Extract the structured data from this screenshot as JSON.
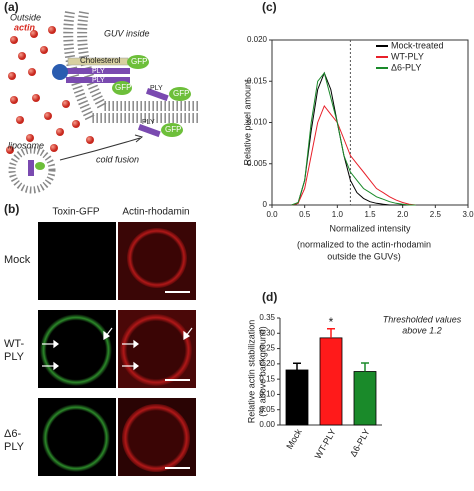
{
  "panels": {
    "a": {
      "label": "(a)",
      "outside": "Outside",
      "actin": "actin",
      "guv_inside": "GUV inside",
      "cholesterol": "Cholesterol",
      "gfp_1": "GFP",
      "ply_1": "PLY",
      "ply_2": "PLY",
      "gfp_2": "GFP",
      "ply_3": "PLY",
      "gfp_3": "GFP",
      "ply_4": "PLY",
      "gfp_4": "GFP",
      "liposome": "liposome",
      "cold_fusion": "cold fusion"
    },
    "b": {
      "label": "(b)",
      "columns": [
        "Toxin-GFP",
        "Actin-rhodamin"
      ],
      "rows": [
        "Mock",
        "WT-PLY",
        "Δ6-PLY"
      ]
    }
  },
  "chart_data": [
    {
      "type": "line",
      "label": "(c)",
      "ylabel": "Relative pixel amount",
      "xlabel": "Normalized intensity",
      "note": [
        "(normalized to the actin-rhodamin",
        "outside the GUVs)"
      ],
      "x": [
        0.3,
        0.4,
        0.5,
        0.6,
        0.7,
        0.8,
        0.9,
        1.0,
        1.1,
        1.2,
        1.3,
        1.4,
        1.5,
        1.6,
        1.7,
        1.8,
        1.9,
        2.0,
        2.1,
        2.2
      ],
      "series": [
        {
          "name": "Mock-treated",
          "color": "#000000",
          "values": [
            0,
            0.0002,
            0.003,
            0.009,
            0.014,
            0.016,
            0.014,
            0.01,
            0.006,
            0.003,
            0.0015,
            0.0008,
            0.0004,
            0.0002,
            0.0001,
            0,
            0,
            0,
            0,
            0
          ]
        },
        {
          "name": "WT-PLY",
          "color": "#e8202a",
          "values": [
            0,
            0.0002,
            0.002,
            0.006,
            0.01,
            0.012,
            0.011,
            0.01,
            0.008,
            0.006,
            0.005,
            0.004,
            0.003,
            0.002,
            0.0015,
            0.001,
            0.0006,
            0.0003,
            0.0001,
            0
          ]
        },
        {
          "name": "Δ6-PLY",
          "color": "#1a8a2a",
          "values": [
            0,
            0.0003,
            0.003,
            0.01,
            0.015,
            0.016,
            0.013,
            0.01,
            0.006,
            0.004,
            0.003,
            0.002,
            0.0015,
            0.001,
            0.0007,
            0.0004,
            0.0002,
            0.0001,
            0,
            0
          ]
        }
      ],
      "threshold_x": 1.2,
      "xlim": [
        0,
        3
      ],
      "ylim": [
        0,
        0.02
      ],
      "xticks": [
        {
          "value": 0,
          "label": "0.0"
        },
        0.5,
        {
          "value": 1,
          "label": "1.0"
        },
        1.5,
        {
          "value": 2,
          "label": "2.0"
        },
        2.5,
        {
          "value": 3,
          "label": "3.0"
        }
      ],
      "yticks": [
        0,
        0.005,
        {
          "value": 0.01,
          "label": "0.010"
        },
        0.015,
        {
          "value": 0.02,
          "label": "0.020"
        }
      ],
      "legend": "upper right"
    },
    {
      "type": "bar",
      "label": "(d)",
      "ylabel": [
        "Relative actin stabilization",
        "(% above background)"
      ],
      "note": [
        "Thresholded values",
        "above 1.2"
      ],
      "categories": [
        "Mock",
        "WT-PLY",
        "Δ6-PLY"
      ],
      "values": [
        0.18,
        0.285,
        0.175
      ],
      "errors": [
        0.022,
        0.03,
        0.028
      ],
      "colors": [
        "#000000",
        "#ff1a1a",
        "#1a8a2a"
      ],
      "annotations": [
        {
          "text": "*",
          "category": "WT-PLY"
        }
      ],
      "ylim": [
        0,
        0.35
      ],
      "yticks": [
        {
          "value": 0,
          "label": "0.00"
        },
        {
          "value": 0.05,
          "label": "0.05"
        },
        {
          "value": 0.1,
          "label": "0.10"
        },
        {
          "value": 0.15,
          "label": "0.15"
        },
        {
          "value": 0.2,
          "label": "0.20"
        },
        {
          "value": 0.25,
          "label": "0.25"
        },
        {
          "value": 0.3,
          "label": "0.30"
        },
        {
          "value": 0.35,
          "label": "0.35"
        }
      ]
    }
  ]
}
